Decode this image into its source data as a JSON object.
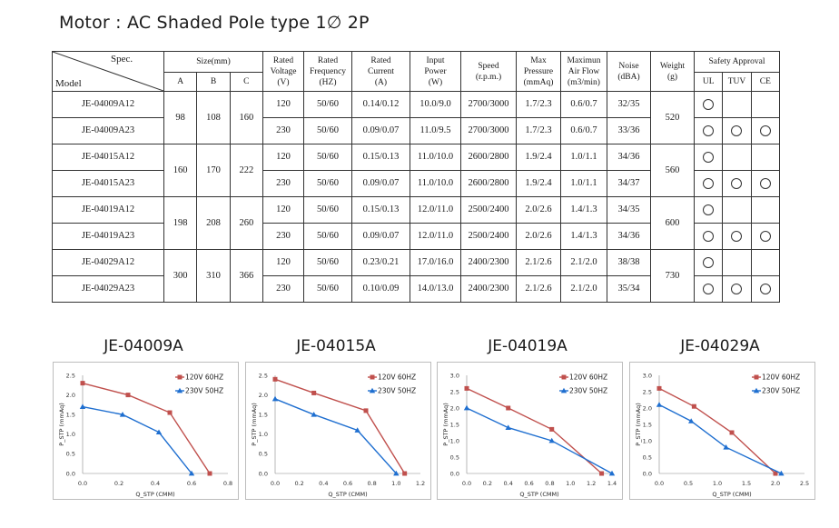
{
  "title": "Motor : AC Shaded Pole type 1∅ 2P",
  "table": {
    "spec_label": "Spec.",
    "model_label": "Model",
    "headers": {
      "size": "Size(mm)",
      "a": "A",
      "b": "B",
      "c": "C",
      "voltage": [
        "Rated",
        "Voltage",
        "(V)"
      ],
      "frequency": [
        "Rated",
        "Frequency",
        "(HZ)"
      ],
      "current": [
        "Rated",
        "Current",
        "(A)"
      ],
      "power": [
        "Input",
        "Power",
        "(W)"
      ],
      "speed": [
        "Speed",
        "(r.p.m.)"
      ],
      "pressure": [
        "Max",
        "Pressure",
        "(mmAq)"
      ],
      "airflow": [
        "Maximun",
        "Air Flow",
        "(m3/min)"
      ],
      "noise": [
        "Noise",
        "(dBA)"
      ],
      "weight": [
        "Weight",
        "(g)"
      ],
      "safety": "Safety Approval",
      "ul": "UL",
      "tuv": "TUV",
      "ce": "CE"
    },
    "groups": [
      {
        "a": "98",
        "b": "108",
        "c": "160",
        "weight": "520",
        "rows": [
          {
            "model": "JE-04009A12",
            "voltage": "120",
            "freq": "50/60",
            "current": "0.14/0.12",
            "power": "10.0/9.0",
            "speed": "2700/3000",
            "pressure": "1.7/2.3",
            "airflow": "0.6/0.7",
            "noise": "32/35",
            "ul": true,
            "tuv": false,
            "ce": false
          },
          {
            "model": "JE-04009A23",
            "voltage": "230",
            "freq": "50/60",
            "current": "0.09/0.07",
            "power": "11.0/9.5",
            "speed": "2700/3000",
            "pressure": "1.7/2.3",
            "airflow": "0.6/0.7",
            "noise": "33/36",
            "ul": true,
            "tuv": true,
            "ce": true
          }
        ]
      },
      {
        "a": "160",
        "b": "170",
        "c": "222",
        "weight": "560",
        "rows": [
          {
            "model": "JE-04015A12",
            "voltage": "120",
            "freq": "50/60",
            "current": "0.15/0.13",
            "power": "11.0/10.0",
            "speed": "2600/2800",
            "pressure": "1.9/2.4",
            "airflow": "1.0/1.1",
            "noise": "34/36",
            "ul": true,
            "tuv": false,
            "ce": false
          },
          {
            "model": "JE-04015A23",
            "voltage": "230",
            "freq": "50/60",
            "current": "0.09/0.07",
            "power": "11.0/10.0",
            "speed": "2600/2800",
            "pressure": "1.9/2.4",
            "airflow": "1.0/1.1",
            "noise": "34/37",
            "ul": true,
            "tuv": true,
            "ce": true
          }
        ]
      },
      {
        "a": "198",
        "b": "208",
        "c": "260",
        "weight": "600",
        "rows": [
          {
            "model": "JE-04019A12",
            "voltage": "120",
            "freq": "50/60",
            "current": "0.15/0.13",
            "power": "12.0/11.0",
            "speed": "2500/2400",
            "pressure": "2.0/2.6",
            "airflow": "1.4/1.3",
            "noise": "34/35",
            "ul": true,
            "tuv": false,
            "ce": false
          },
          {
            "model": "JE-04019A23",
            "voltage": "230",
            "freq": "50/60",
            "current": "0.09/0.07",
            "power": "12.0/11.0",
            "speed": "2500/2400",
            "pressure": "2.0/2.6",
            "airflow": "1.4/1.3",
            "noise": "34/36",
            "ul": true,
            "tuv": true,
            "ce": true
          }
        ]
      },
      {
        "a": "300",
        "b": "310",
        "c": "366",
        "weight": "730",
        "rows": [
          {
            "model": "JE-04029A12",
            "voltage": "120",
            "freq": "50/60",
            "current": "0.23/0.21",
            "power": "17.0/16.0",
            "speed": "2400/2300",
            "pressure": "2.1/2.6",
            "airflow": "2.1/2.0",
            "noise": "38/38",
            "ul": true,
            "tuv": false,
            "ce": false
          },
          {
            "model": "JE-04029A23",
            "voltage": "230",
            "freq": "50/60",
            "current": "0.10/0.09",
            "power": "14.0/13.0",
            "speed": "2400/2300",
            "pressure": "2.1/2.6",
            "airflow": "2.1/2.0",
            "noise": "35/34",
            "ul": true,
            "tuv": true,
            "ce": true
          }
        ]
      }
    ]
  },
  "colors": {
    "series_120v": "#c0504d",
    "series_230v": "#1f6fd0"
  },
  "chart_data": [
    {
      "type": "line",
      "title": "JE-04009A",
      "xlabel": "Q_STP (CMM)",
      "ylabel": "P_STP (mmAq)",
      "xlim": [
        0.0,
        0.8
      ],
      "ylim": [
        0.0,
        2.5
      ],
      "xticks": [
        "0.0",
        "0.2",
        "0.4",
        "0.6",
        "0.8"
      ],
      "yticks": [
        "0.0",
        "0.5",
        "1.0",
        "1.5",
        "2.0",
        "2.5"
      ],
      "series": [
        {
          "name": "120V 60HZ",
          "x": [
            0.0,
            0.25,
            0.48,
            0.7
          ],
          "y": [
            2.3,
            2.0,
            1.55,
            0.0
          ]
        },
        {
          "name": "230V 50HZ",
          "x": [
            0.0,
            0.22,
            0.42,
            0.6
          ],
          "y": [
            1.7,
            1.5,
            1.05,
            0.0
          ]
        }
      ],
      "legend": "top-right",
      "grid": false
    },
    {
      "type": "line",
      "title": "JE-04015A",
      "xlabel": "Q_STP (CMM)",
      "ylabel": "P_STP (mmAq)",
      "xlim": [
        0.0,
        1.2
      ],
      "ylim": [
        0.0,
        2.5
      ],
      "xticks": [
        "0.0",
        "0.2",
        "0.4",
        "0.6",
        "0.8",
        "1.0",
        "1.2"
      ],
      "yticks": [
        "0.0",
        "0.5",
        "1.0",
        "1.5",
        "2.0",
        "2.5"
      ],
      "series": [
        {
          "name": "120V 60HZ",
          "x": [
            0.0,
            0.32,
            0.75,
            1.07
          ],
          "y": [
            2.4,
            2.05,
            1.6,
            0.0
          ]
        },
        {
          "name": "230V 50HZ",
          "x": [
            0.0,
            0.32,
            0.68,
            1.0
          ],
          "y": [
            1.9,
            1.5,
            1.1,
            0.0
          ]
        }
      ],
      "legend": "top-right",
      "grid": false
    },
    {
      "type": "line",
      "title": "JE-04019A",
      "xlabel": "Q_STP (CMM)",
      "ylabel": "P_STP (mmAq)",
      "xlim": [
        0.0,
        1.4
      ],
      "ylim": [
        0.0,
        3.0
      ],
      "xticks": [
        "0.0",
        "0.2",
        "0.4",
        "0.6",
        "0.8",
        "1.0",
        "1.2",
        "1.4"
      ],
      "yticks": [
        "0.0",
        "0.5",
        "1.0",
        "1.5",
        "2.0",
        "2.5",
        "3.0"
      ],
      "series": [
        {
          "name": "120V 60HZ",
          "x": [
            0.0,
            0.4,
            0.82,
            1.3
          ],
          "y": [
            2.6,
            2.0,
            1.35,
            0.0
          ]
        },
        {
          "name": "230V 50HZ",
          "x": [
            0.0,
            0.4,
            0.82,
            1.4
          ],
          "y": [
            2.0,
            1.4,
            1.0,
            0.0
          ]
        }
      ],
      "legend": "top-right",
      "grid": false
    },
    {
      "type": "line",
      "title": "JE-04029A",
      "xlabel": "Q_STP (CMM)",
      "ylabel": "P_STP (mmAq)",
      "xlim": [
        0.0,
        2.5
      ],
      "ylim": [
        0.0,
        3.0
      ],
      "xticks": [
        "0.0",
        "0.5",
        "1.0",
        "1.5",
        "2.0",
        "2.5"
      ],
      "yticks": [
        "0.0",
        "0.5",
        "1.0",
        "1.5",
        "2.0",
        "2.5",
        "3.0"
      ],
      "series": [
        {
          "name": "120V 60HZ",
          "x": [
            0.0,
            0.6,
            1.25,
            2.0
          ],
          "y": [
            2.6,
            2.05,
            1.25,
            0.0
          ]
        },
        {
          "name": "230V 50HZ",
          "x": [
            0.0,
            0.55,
            1.15,
            2.1
          ],
          "y": [
            2.1,
            1.6,
            0.8,
            0.0
          ]
        }
      ],
      "legend": "top-right",
      "grid": false
    }
  ]
}
